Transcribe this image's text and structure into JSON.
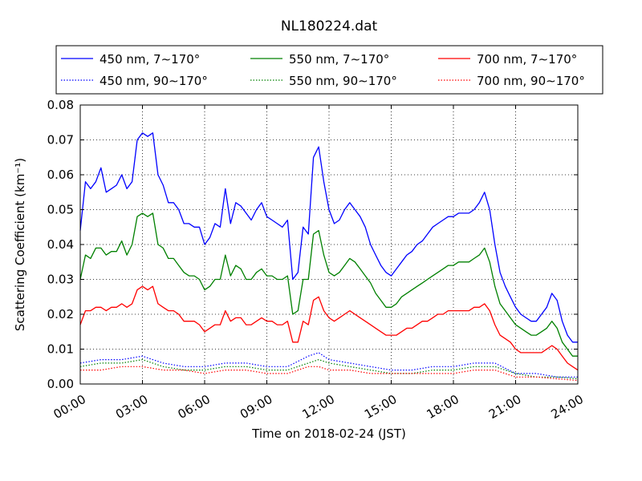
{
  "chart_data": {
    "type": "line",
    "title": "NL180224.dat",
    "xlabel": "Time on 2018-02-24 (JST)",
    "ylabel": "Scattering Coefficient (km⁻¹)",
    "x_unit": "hour of day (JST)",
    "xlim": [
      0,
      24
    ],
    "ylim": [
      0,
      0.08
    ],
    "x_ticks": [
      0,
      3,
      6,
      9,
      12,
      15,
      18,
      21,
      24
    ],
    "x_tick_labels": [
      "00:00",
      "03:00",
      "06:00",
      "09:00",
      "12:00",
      "15:00",
      "18:00",
      "21:00",
      "24:00"
    ],
    "y_ticks": [
      0,
      0.01,
      0.02,
      0.03,
      0.04,
      0.05,
      0.06,
      0.07,
      0.08
    ],
    "y_tick_labels": [
      "0.00",
      "0.01",
      "0.02",
      "0.03",
      "0.04",
      "0.05",
      "0.06",
      "0.07",
      "0.08"
    ],
    "grid": true,
    "legend_position": "top, above plot",
    "series": [
      {
        "name": "450 nm, 7∼170°",
        "color": "#0000ff",
        "style": "solid",
        "x": [
          0,
          0.25,
          0.5,
          0.75,
          1,
          1.25,
          1.5,
          1.75,
          2,
          2.25,
          2.5,
          2.75,
          3,
          3.25,
          3.5,
          3.75,
          4,
          4.25,
          4.5,
          4.75,
          5,
          5.25,
          5.5,
          5.75,
          6,
          6.25,
          6.5,
          6.75,
          7,
          7.25,
          7.5,
          7.75,
          8,
          8.25,
          8.5,
          8.75,
          9,
          9.25,
          9.5,
          9.75,
          10,
          10.25,
          10.5,
          10.75,
          11,
          11.25,
          11.5,
          11.75,
          12,
          12.25,
          12.5,
          12.75,
          13,
          13.25,
          13.5,
          13.75,
          14,
          14.25,
          14.5,
          14.75,
          15,
          15.25,
          15.5,
          15.75,
          16,
          16.25,
          16.5,
          16.75,
          17,
          17.25,
          17.5,
          17.75,
          18,
          18.25,
          18.5,
          18.75,
          19,
          19.25,
          19.5,
          19.75,
          20,
          20.25,
          20.5,
          20.75,
          21,
          21.25,
          21.5,
          21.75,
          22,
          22.25,
          22.5,
          22.75,
          23,
          23.25,
          23.5,
          23.75,
          24
        ],
        "y": [
          0.044,
          0.058,
          0.056,
          0.058,
          0.062,
          0.055,
          0.056,
          0.057,
          0.06,
          0.056,
          0.058,
          0.07,
          0.072,
          0.071,
          0.072,
          0.06,
          0.057,
          0.052,
          0.052,
          0.05,
          0.046,
          0.046,
          0.045,
          0.045,
          0.04,
          0.042,
          0.046,
          0.045,
          0.056,
          0.046,
          0.052,
          0.051,
          0.049,
          0.047,
          0.05,
          0.052,
          0.048,
          0.047,
          0.046,
          0.045,
          0.047,
          0.03,
          0.032,
          0.045,
          0.043,
          0.065,
          0.068,
          0.058,
          0.05,
          0.046,
          0.047,
          0.05,
          0.052,
          0.05,
          0.048,
          0.045,
          0.04,
          0.037,
          0.034,
          0.032,
          0.031,
          0.033,
          0.035,
          0.037,
          0.038,
          0.04,
          0.041,
          0.043,
          0.045,
          0.046,
          0.047,
          0.048,
          0.048,
          0.049,
          0.049,
          0.049,
          0.05,
          0.052,
          0.055,
          0.05,
          0.04,
          0.032,
          0.028,
          0.025,
          0.022,
          0.02,
          0.019,
          0.018,
          0.018,
          0.02,
          0.022,
          0.026,
          0.024,
          0.018,
          0.014,
          0.012,
          0.012
        ]
      },
      {
        "name": "550 nm, 7∼170°",
        "color": "#008000",
        "style": "solid",
        "x": [
          0,
          0.25,
          0.5,
          0.75,
          1,
          1.25,
          1.5,
          1.75,
          2,
          2.25,
          2.5,
          2.75,
          3,
          3.25,
          3.5,
          3.75,
          4,
          4.25,
          4.5,
          4.75,
          5,
          5.25,
          5.5,
          5.75,
          6,
          6.25,
          6.5,
          6.75,
          7,
          7.25,
          7.5,
          7.75,
          8,
          8.25,
          8.5,
          8.75,
          9,
          9.25,
          9.5,
          9.75,
          10,
          10.25,
          10.5,
          10.75,
          11,
          11.25,
          11.5,
          11.75,
          12,
          12.25,
          12.5,
          12.75,
          13,
          13.25,
          13.5,
          13.75,
          14,
          14.25,
          14.5,
          14.75,
          15,
          15.25,
          15.5,
          15.75,
          16,
          16.25,
          16.5,
          16.75,
          17,
          17.25,
          17.5,
          17.75,
          18,
          18.25,
          18.5,
          18.75,
          19,
          19.25,
          19.5,
          19.75,
          20,
          20.25,
          20.5,
          20.75,
          21,
          21.25,
          21.5,
          21.75,
          22,
          22.25,
          22.5,
          22.75,
          23,
          23.25,
          23.5,
          23.75,
          24
        ],
        "y": [
          0.03,
          0.037,
          0.036,
          0.039,
          0.039,
          0.037,
          0.038,
          0.038,
          0.041,
          0.037,
          0.04,
          0.048,
          0.049,
          0.048,
          0.049,
          0.04,
          0.039,
          0.036,
          0.036,
          0.034,
          0.032,
          0.031,
          0.031,
          0.03,
          0.027,
          0.028,
          0.03,
          0.03,
          0.037,
          0.031,
          0.034,
          0.033,
          0.03,
          0.03,
          0.032,
          0.033,
          0.031,
          0.031,
          0.03,
          0.03,
          0.031,
          0.02,
          0.021,
          0.03,
          0.03,
          0.043,
          0.044,
          0.037,
          0.032,
          0.031,
          0.032,
          0.034,
          0.036,
          0.035,
          0.033,
          0.031,
          0.029,
          0.026,
          0.024,
          0.022,
          0.022,
          0.023,
          0.025,
          0.026,
          0.027,
          0.028,
          0.029,
          0.03,
          0.031,
          0.032,
          0.033,
          0.034,
          0.034,
          0.035,
          0.035,
          0.035,
          0.036,
          0.037,
          0.039,
          0.035,
          0.028,
          0.023,
          0.021,
          0.019,
          0.017,
          0.016,
          0.015,
          0.014,
          0.014,
          0.015,
          0.016,
          0.018,
          0.016,
          0.012,
          0.01,
          0.008,
          0.008
        ]
      },
      {
        "name": "700 nm, 7∼170°",
        "color": "#ff0000",
        "style": "solid",
        "x": [
          0,
          0.25,
          0.5,
          0.75,
          1,
          1.25,
          1.5,
          1.75,
          2,
          2.25,
          2.5,
          2.75,
          3,
          3.25,
          3.5,
          3.75,
          4,
          4.25,
          4.5,
          4.75,
          5,
          5.25,
          5.5,
          5.75,
          6,
          6.25,
          6.5,
          6.75,
          7,
          7.25,
          7.5,
          7.75,
          8,
          8.25,
          8.5,
          8.75,
          9,
          9.25,
          9.5,
          9.75,
          10,
          10.25,
          10.5,
          10.75,
          11,
          11.25,
          11.5,
          11.75,
          12,
          12.25,
          12.5,
          12.75,
          13,
          13.25,
          13.5,
          13.75,
          14,
          14.25,
          14.5,
          14.75,
          15,
          15.25,
          15.5,
          15.75,
          16,
          16.25,
          16.5,
          16.75,
          17,
          17.25,
          17.5,
          17.75,
          18,
          18.25,
          18.5,
          18.75,
          19,
          19.25,
          19.5,
          19.75,
          20,
          20.25,
          20.5,
          20.75,
          21,
          21.25,
          21.5,
          21.75,
          22,
          22.25,
          22.5,
          22.75,
          23,
          23.25,
          23.5,
          23.75,
          24
        ],
        "y": [
          0.017,
          0.021,
          0.021,
          0.022,
          0.022,
          0.021,
          0.022,
          0.022,
          0.023,
          0.022,
          0.023,
          0.027,
          0.028,
          0.027,
          0.028,
          0.023,
          0.022,
          0.021,
          0.021,
          0.02,
          0.018,
          0.018,
          0.018,
          0.017,
          0.015,
          0.016,
          0.017,
          0.017,
          0.021,
          0.018,
          0.019,
          0.019,
          0.017,
          0.017,
          0.018,
          0.019,
          0.018,
          0.018,
          0.017,
          0.017,
          0.018,
          0.012,
          0.012,
          0.018,
          0.017,
          0.024,
          0.025,
          0.021,
          0.019,
          0.018,
          0.019,
          0.02,
          0.021,
          0.02,
          0.019,
          0.018,
          0.017,
          0.016,
          0.015,
          0.014,
          0.014,
          0.014,
          0.015,
          0.016,
          0.016,
          0.017,
          0.018,
          0.018,
          0.019,
          0.02,
          0.02,
          0.021,
          0.021,
          0.021,
          0.021,
          0.021,
          0.022,
          0.022,
          0.023,
          0.021,
          0.017,
          0.014,
          0.013,
          0.012,
          0.01,
          0.009,
          0.009,
          0.009,
          0.009,
          0.009,
          0.01,
          0.011,
          0.01,
          0.008,
          0.006,
          0.005,
          0.004
        ]
      },
      {
        "name": "450 nm, 90∼170°",
        "color": "#0000ff",
        "style": "dotted",
        "x": [
          0,
          1,
          2,
          3,
          4,
          5,
          6,
          7,
          8,
          9,
          10,
          11,
          11.5,
          12,
          13,
          14,
          15,
          16,
          17,
          18,
          19,
          20,
          21,
          22,
          23,
          24
        ],
        "y": [
          0.006,
          0.007,
          0.007,
          0.008,
          0.006,
          0.005,
          0.005,
          0.006,
          0.006,
          0.005,
          0.005,
          0.008,
          0.009,
          0.007,
          0.006,
          0.005,
          0.004,
          0.004,
          0.005,
          0.005,
          0.006,
          0.006,
          0.003,
          0.003,
          0.002,
          0.002
        ]
      },
      {
        "name": "550 nm, 90∼170°",
        "color": "#008000",
        "style": "dotted",
        "x": [
          0,
          1,
          2,
          3,
          4,
          5,
          6,
          7,
          8,
          9,
          10,
          11,
          11.5,
          12,
          13,
          14,
          15,
          16,
          17,
          18,
          19,
          20,
          21,
          22,
          23,
          24
        ],
        "y": [
          0.005,
          0.006,
          0.006,
          0.007,
          0.005,
          0.004,
          0.004,
          0.005,
          0.005,
          0.004,
          0.004,
          0.006,
          0.007,
          0.006,
          0.005,
          0.004,
          0.003,
          0.003,
          0.004,
          0.004,
          0.005,
          0.005,
          0.003,
          0.002,
          0.002,
          0.0015
        ]
      },
      {
        "name": "700 nm, 90∼170°",
        "color": "#ff0000",
        "style": "dotted",
        "x": [
          0,
          1,
          2,
          3,
          4,
          5,
          6,
          7,
          8,
          9,
          10,
          11,
          11.5,
          12,
          13,
          14,
          15,
          16,
          17,
          18,
          19,
          20,
          21,
          22,
          23,
          24
        ],
        "y": [
          0.004,
          0.004,
          0.005,
          0.005,
          0.004,
          0.004,
          0.003,
          0.004,
          0.004,
          0.003,
          0.003,
          0.005,
          0.005,
          0.004,
          0.004,
          0.003,
          0.003,
          0.003,
          0.003,
          0.003,
          0.004,
          0.004,
          0.002,
          0.002,
          0.0015,
          0.001
        ]
      }
    ]
  }
}
